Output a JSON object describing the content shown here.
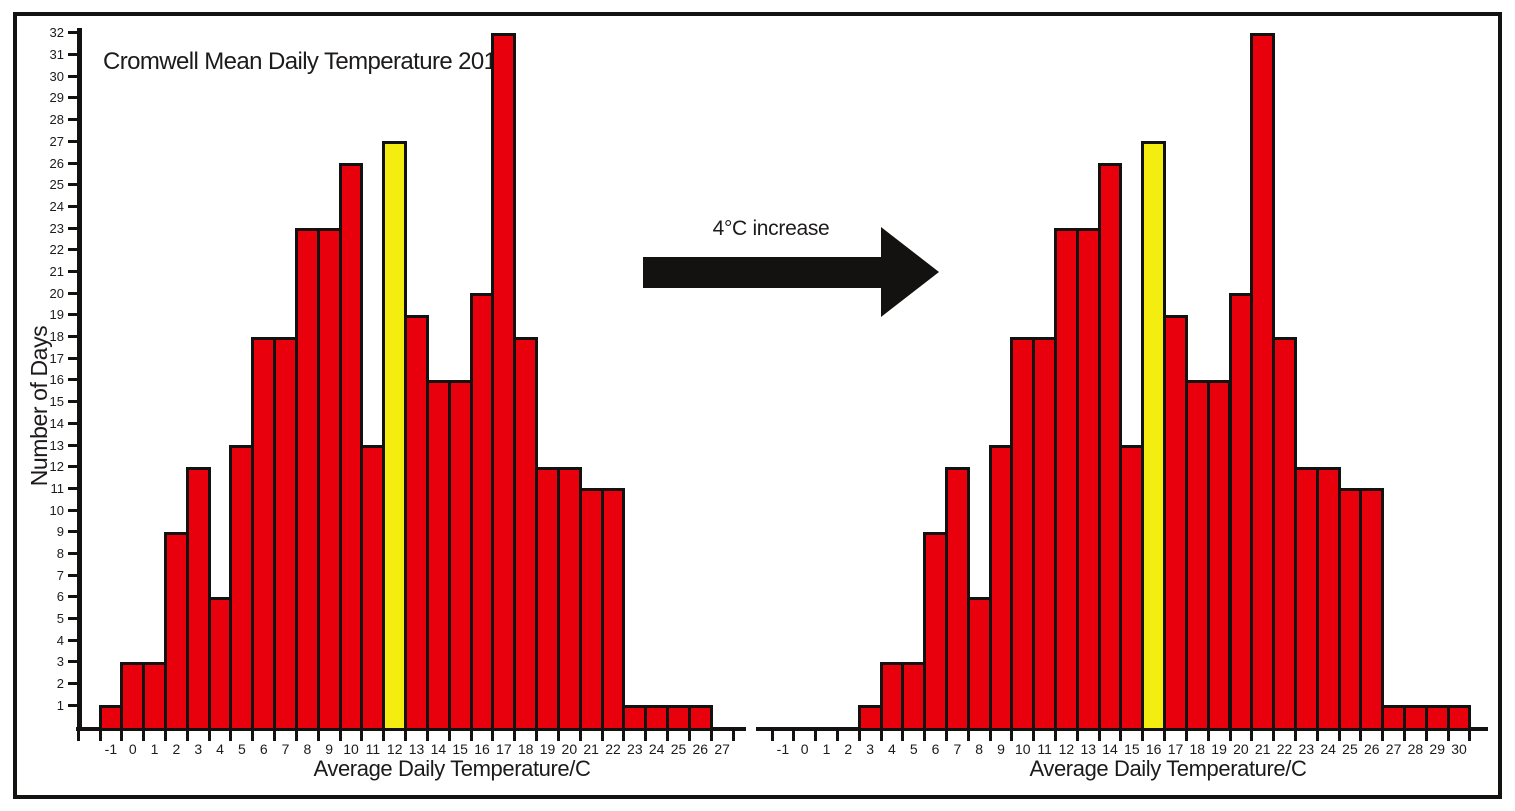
{
  "annotation": {
    "label": "4°C increase"
  },
  "colors": {
    "bar": "#e8000d",
    "highlight": "#f3ee10",
    "axis": "#141111",
    "text": "#1d1a1b"
  },
  "chart_data": [
    {
      "type": "bar",
      "title": "Cromwell Mean Daily Temperature 2013",
      "xlabel": "Average Daily Temperature/C",
      "ylabel": "Number of Days",
      "categories": [
        -1,
        0,
        1,
        2,
        3,
        4,
        5,
        6,
        7,
        8,
        9,
        10,
        11,
        12,
        13,
        14,
        15,
        16,
        17,
        18,
        19,
        20,
        21,
        22,
        23,
        24,
        25,
        26,
        27
      ],
      "values": [
        1,
        3,
        3,
        9,
        12,
        6,
        13,
        18,
        18,
        23,
        23,
        26,
        13,
        27,
        19,
        16,
        16,
        20,
        32,
        18,
        12,
        12,
        11,
        11,
        1,
        1,
        1,
        1,
        0
      ],
      "highlight_category": 12,
      "ylim": [
        0,
        32
      ],
      "ytick_step": 1,
      "y_axis_visible": true,
      "grid": false,
      "legend": false
    },
    {
      "type": "bar",
      "title": "",
      "xlabel": "Average Daily Temperature/C",
      "ylabel": "",
      "categories": [
        -1,
        0,
        1,
        2,
        3,
        4,
        5,
        6,
        7,
        8,
        9,
        10,
        11,
        12,
        13,
        14,
        15,
        16,
        17,
        18,
        19,
        20,
        21,
        22,
        23,
        24,
        25,
        26,
        27,
        28,
        29,
        30
      ],
      "values": [
        0,
        0,
        0,
        0,
        1,
        3,
        3,
        9,
        12,
        6,
        13,
        18,
        18,
        23,
        23,
        26,
        13,
        27,
        19,
        16,
        16,
        20,
        32,
        18,
        12,
        12,
        11,
        11,
        1,
        1,
        1,
        1
      ],
      "highlight_category": 16,
      "ylim": [
        0,
        32
      ],
      "ytick_step": 1,
      "y_axis_visible": false,
      "grid": false,
      "legend": false
    }
  ]
}
